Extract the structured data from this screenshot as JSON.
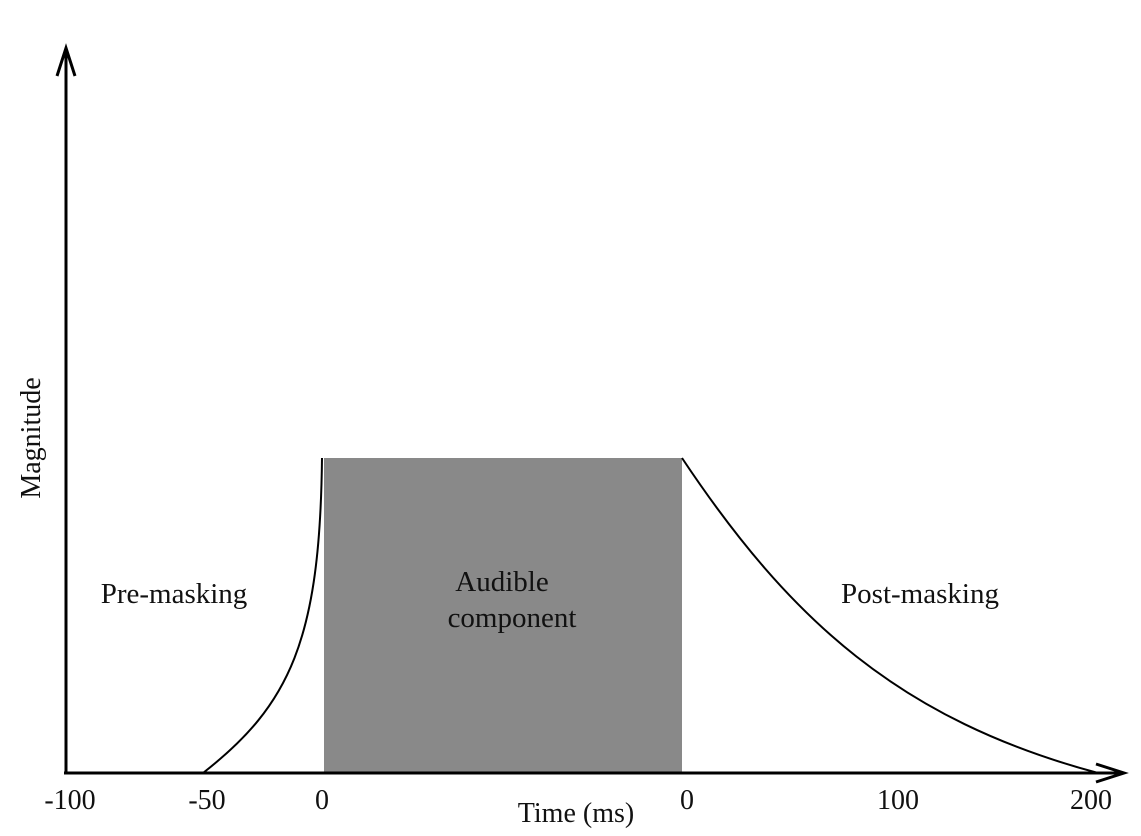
{
  "axes": {
    "y_label": "Magnitude",
    "x_label": "Time (ms)",
    "x_ticks": [
      "-100",
      "-50",
      "0",
      "0",
      "100",
      "200"
    ]
  },
  "regions": {
    "pre_masking": "Pre-masking",
    "audible_line1": "Audible",
    "audible_line2": "component",
    "post_masking": "Post-masking"
  },
  "colors": {
    "audible_fill": "#898989",
    "line": "#000000"
  }
}
